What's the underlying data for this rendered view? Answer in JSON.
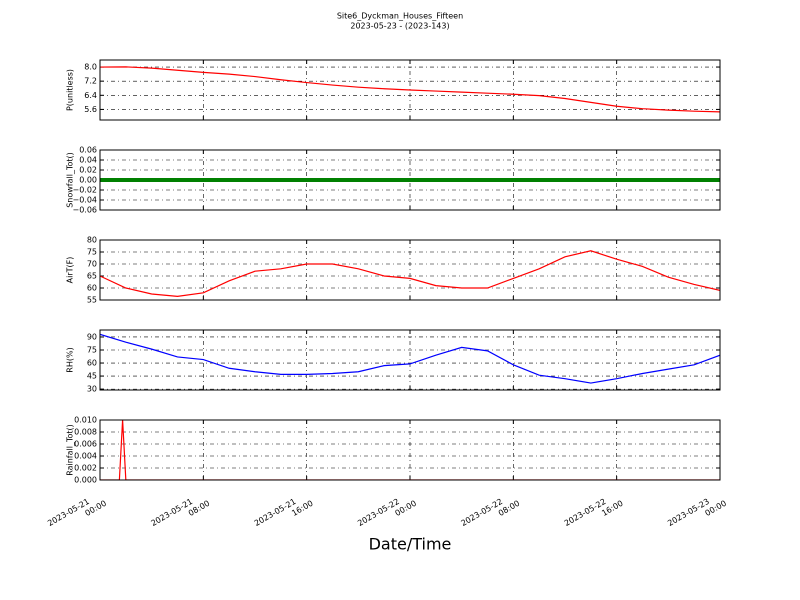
{
  "header": {
    "title": "Site6_Dyckman_Houses_Fifteen",
    "subtitle": "2023-05-23 - (2023-143)"
  },
  "chart_data": [
    {
      "type": "line",
      "ylabel": "P(unitless)",
      "x": [
        "2023-05-21 00:00",
        "2023-05-21 02:00",
        "2023-05-21 04:00",
        "2023-05-21 06:00",
        "2023-05-21 08:00",
        "2023-05-21 10:00",
        "2023-05-21 12:00",
        "2023-05-21 14:00",
        "2023-05-21 16:00",
        "2023-05-21 18:00",
        "2023-05-21 20:00",
        "2023-05-21 22:00",
        "2023-05-22 00:00",
        "2023-05-22 02:00",
        "2023-05-22 04:00",
        "2023-05-22 06:00",
        "2023-05-22 08:00",
        "2023-05-22 10:00",
        "2023-05-22 12:00",
        "2023-05-22 14:00",
        "2023-05-22 16:00",
        "2023-05-22 18:00",
        "2023-05-22 20:00",
        "2023-05-22 22:00",
        "2023-05-23 00:00"
      ],
      "series": [
        {
          "name": "P(unitless)",
          "color": "#ff0000",
          "values": [
            8.0,
            8.01,
            7.94,
            7.82,
            7.7,
            7.6,
            7.46,
            7.28,
            7.12,
            6.98,
            6.86,
            6.77,
            6.7,
            6.64,
            6.58,
            6.52,
            6.46,
            6.38,
            6.22,
            6.0,
            5.78,
            5.64,
            5.56,
            5.5,
            5.46
          ]
        }
      ],
      "xlim": [
        "2023-05-21 00:00",
        "2023-05-23 00:00"
      ],
      "xticks": [
        "2023-05-21 00:00",
        "2023-05-21 08:00",
        "2023-05-21 16:00",
        "2023-05-22 00:00",
        "2023-05-22 08:00",
        "2023-05-22 16:00",
        "2023-05-23 00:00"
      ],
      "ylim": [
        5.0,
        8.4
      ],
      "yticks": [
        5.6,
        6.4,
        7.2,
        {
          "value": 8,
          "label": "8.0"
        }
      ],
      "grid": true
    },
    {
      "type": "line",
      "ylabel": "Snowfall_Tot()",
      "x": [
        "2023-05-21 00:00",
        "2023-05-21 02:00",
        "2023-05-21 04:00",
        "2023-05-21 06:00",
        "2023-05-21 08:00",
        "2023-05-21 10:00",
        "2023-05-21 12:00",
        "2023-05-21 14:00",
        "2023-05-21 16:00",
        "2023-05-21 18:00",
        "2023-05-21 20:00",
        "2023-05-21 22:00",
        "2023-05-22 00:00",
        "2023-05-22 02:00",
        "2023-05-22 04:00",
        "2023-05-22 06:00",
        "2023-05-22 08:00",
        "2023-05-22 10:00",
        "2023-05-22 12:00",
        "2023-05-22 14:00",
        "2023-05-22 16:00",
        "2023-05-22 18:00",
        "2023-05-22 20:00",
        "2023-05-22 22:00",
        "2023-05-23 00:00"
      ],
      "series": [
        {
          "name": "Snowfall_Tot()",
          "color": "#008000",
          "values": [
            0,
            0,
            0,
            0,
            0,
            0,
            0,
            0,
            0,
            0,
            0,
            0,
            0,
            0,
            0,
            0,
            0,
            0,
            0,
            0,
            0,
            0,
            0,
            0,
            0
          ]
        }
      ],
      "xlim": [
        "2023-05-21 00:00",
        "2023-05-23 00:00"
      ],
      "xticks": [
        "2023-05-21 00:00",
        "2023-05-21 08:00",
        "2023-05-21 16:00",
        "2023-05-22 00:00",
        "2023-05-22 08:00",
        "2023-05-22 16:00",
        "2023-05-23 00:00"
      ],
      "ylim": [
        -0.06,
        0.06
      ],
      "yticks": [
        {
          "value": -0.06,
          "label": "−0.06"
        },
        {
          "value": -0.04,
          "label": "−0.04"
        },
        {
          "value": -0.02,
          "label": "−0.02"
        },
        {
          "value": 0,
          "label": "0.00"
        },
        {
          "value": 0.02,
          "label": "0.02"
        },
        {
          "value": 0.04,
          "label": "0.04"
        },
        {
          "value": 0.06,
          "label": "0.06"
        }
      ],
      "grid": true
    },
    {
      "type": "line",
      "ylabel": "AirT(F)",
      "x": [
        "2023-05-21 00:00",
        "2023-05-21 02:00",
        "2023-05-21 04:00",
        "2023-05-21 06:00",
        "2023-05-21 08:00",
        "2023-05-21 10:00",
        "2023-05-21 12:00",
        "2023-05-21 14:00",
        "2023-05-21 16:00",
        "2023-05-21 18:00",
        "2023-05-21 20:00",
        "2023-05-21 22:00",
        "2023-05-22 00:00",
        "2023-05-22 02:00",
        "2023-05-22 04:00",
        "2023-05-22 06:00",
        "2023-05-22 08:00",
        "2023-05-22 10:00",
        "2023-05-22 12:00",
        "2023-05-22 14:00",
        "2023-05-22 16:00",
        "2023-05-22 18:00",
        "2023-05-22 20:00",
        "2023-05-22 22:00",
        "2023-05-23 00:00"
      ],
      "series": [
        {
          "name": "AirT(F)",
          "color": "#ff0000",
          "values": [
            65,
            60,
            57.5,
            56.5,
            58,
            63,
            67,
            68,
            70,
            70,
            68,
            65,
            64,
            61,
            60,
            60,
            64,
            68,
            73,
            75.5,
            72,
            69,
            64.5,
            61.5,
            59
          ]
        }
      ],
      "xlim": [
        "2023-05-21 00:00",
        "2023-05-23 00:00"
      ],
      "xticks": [
        "2023-05-21 00:00",
        "2023-05-21 08:00",
        "2023-05-21 16:00",
        "2023-05-22 00:00",
        "2023-05-22 08:00",
        "2023-05-22 16:00",
        "2023-05-23 00:00"
      ],
      "ylim": [
        55,
        80
      ],
      "yticks": [
        55,
        60,
        65,
        70,
        75,
        80
      ],
      "grid": true
    },
    {
      "type": "line",
      "ylabel": "RH(%)",
      "x": [
        "2023-05-21 00:00",
        "2023-05-21 02:00",
        "2023-05-21 04:00",
        "2023-05-21 06:00",
        "2023-05-21 08:00",
        "2023-05-21 10:00",
        "2023-05-21 12:00",
        "2023-05-21 14:00",
        "2023-05-21 16:00",
        "2023-05-21 18:00",
        "2023-05-21 20:00",
        "2023-05-21 22:00",
        "2023-05-22 00:00",
        "2023-05-22 02:00",
        "2023-05-22 04:00",
        "2023-05-22 06:00",
        "2023-05-22 08:00",
        "2023-05-22 10:00",
        "2023-05-22 12:00",
        "2023-05-22 14:00",
        "2023-05-22 16:00",
        "2023-05-22 18:00",
        "2023-05-22 20:00",
        "2023-05-22 22:00",
        "2023-05-23 00:00"
      ],
      "series": [
        {
          "name": "RH(%)",
          "color": "#0000ff",
          "values": [
            93,
            84,
            76,
            67,
            64,
            54,
            50,
            47,
            47,
            48,
            50,
            57,
            59,
            69,
            78,
            74,
            58,
            46,
            42,
            37,
            42,
            48,
            53,
            58,
            69
          ]
        }
      ],
      "xlim": [
        "2023-05-21 00:00",
        "2023-05-23 00:00"
      ],
      "xticks": [
        "2023-05-21 00:00",
        "2023-05-21 08:00",
        "2023-05-21 16:00",
        "2023-05-22 00:00",
        "2023-05-22 08:00",
        "2023-05-22 16:00",
        "2023-05-23 00:00"
      ],
      "ylim": [
        29,
        98
      ],
      "yticks": [
        30,
        45,
        60,
        75,
        90
      ],
      "grid": true
    },
    {
      "type": "line",
      "ylabel": "Rainfall_Tot()",
      "xlabel": "Date/Time",
      "x": [
        "2023-05-21 00:00",
        "2023-05-21 01:30",
        "2023-05-21 01:45",
        "2023-05-21 02:00",
        "2023-05-21 03:00",
        "2023-05-23 00:00"
      ],
      "series": [
        {
          "name": "Rainfall_Tot()",
          "color": "#ff0000",
          "values": [
            0,
            0,
            0.01,
            0,
            0,
            0
          ]
        }
      ],
      "xlim": [
        "2023-05-21 00:00",
        "2023-05-23 00:00"
      ],
      "xticks": [
        {
          "value": "2023-05-21 00:00",
          "label": [
            "2023-05-21",
            "00:00"
          ]
        },
        {
          "value": "2023-05-21 08:00",
          "label": [
            "2023-05-21",
            "08:00"
          ]
        },
        {
          "value": "2023-05-21 16:00",
          "label": [
            "2023-05-21",
            "16:00"
          ]
        },
        {
          "value": "2023-05-22 00:00",
          "label": [
            "2023-05-22",
            "00:00"
          ]
        },
        {
          "value": "2023-05-22 08:00",
          "label": [
            "2023-05-22",
            "08:00"
          ]
        },
        {
          "value": "2023-05-22 16:00",
          "label": [
            "2023-05-22",
            "16:00"
          ]
        },
        {
          "value": "2023-05-23 00:00",
          "label": [
            "2023-05-23",
            "00:00"
          ]
        }
      ],
      "ylim": [
        0,
        0.01
      ],
      "yticks": [
        {
          "value": 0,
          "label": "0.000"
        },
        {
          "value": 0.002,
          "label": "0.002"
        },
        {
          "value": 0.004,
          "label": "0.004"
        },
        {
          "value": 0.006,
          "label": "0.006"
        },
        {
          "value": 0.008,
          "label": "0.008"
        },
        {
          "value": 0.01,
          "label": "0.010"
        }
      ],
      "grid": true
    }
  ]
}
